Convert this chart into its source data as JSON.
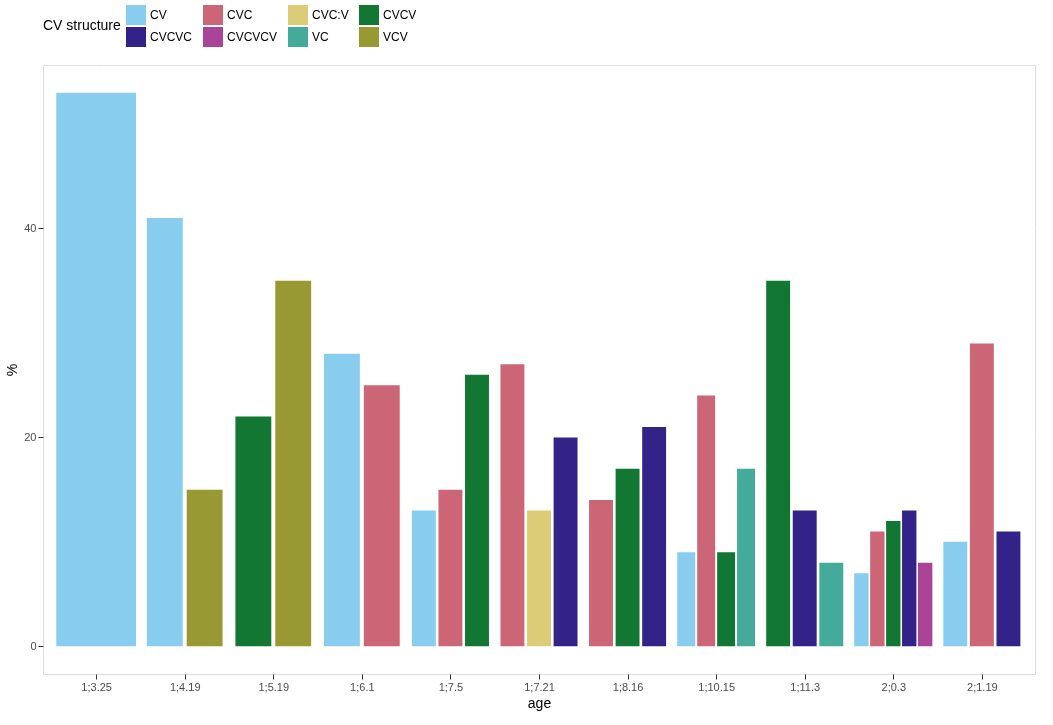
{
  "chart_data": {
    "type": "bar",
    "xlabel": "age",
    "ylabel": "%",
    "legend_title": "CV structure",
    "legend": "top",
    "grid": true,
    "categories": [
      "1;3.25",
      "1;4.19",
      "1;5.19",
      "1;6.1",
      "1;7.5",
      "1;7.21",
      "1;8.16",
      "1;10.15",
      "1;11.3",
      "2;0.3",
      "2;1.19"
    ],
    "ylim": [
      -2.65,
      55.65
    ],
    "yticks": [
      0,
      20,
      40
    ],
    "series": [
      {
        "name": "CV",
        "color": "#88ccee",
        "values": [
          53,
          41,
          null,
          28,
          13,
          null,
          null,
          9,
          null,
          7,
          10
        ]
      },
      {
        "name": "CVC",
        "color": "#cc6677",
        "values": [
          null,
          null,
          null,
          25,
          15,
          27,
          14,
          24,
          null,
          11,
          29
        ]
      },
      {
        "name": "CVC:V",
        "color": "#ddcc77",
        "values": [
          null,
          null,
          null,
          null,
          null,
          13,
          null,
          null,
          null,
          null,
          null
        ]
      },
      {
        "name": "CVCV",
        "color": "#117733",
        "values": [
          null,
          null,
          22,
          null,
          26,
          null,
          17,
          9,
          35,
          12,
          null
        ]
      },
      {
        "name": "CVCVC",
        "color": "#332288",
        "values": [
          null,
          null,
          null,
          null,
          null,
          20,
          21,
          null,
          13,
          13,
          11
        ]
      },
      {
        "name": "CVCVCV",
        "color": "#aa4499",
        "values": [
          null,
          null,
          null,
          null,
          null,
          null,
          null,
          null,
          null,
          8,
          null
        ]
      },
      {
        "name": "VC",
        "color": "#44aa99",
        "values": [
          null,
          null,
          null,
          null,
          null,
          null,
          null,
          17,
          8,
          null,
          null
        ]
      },
      {
        "name": "VCV",
        "color": "#999933",
        "values": [
          null,
          15,
          35,
          null,
          null,
          null,
          null,
          null,
          null,
          null,
          null
        ]
      }
    ]
  }
}
